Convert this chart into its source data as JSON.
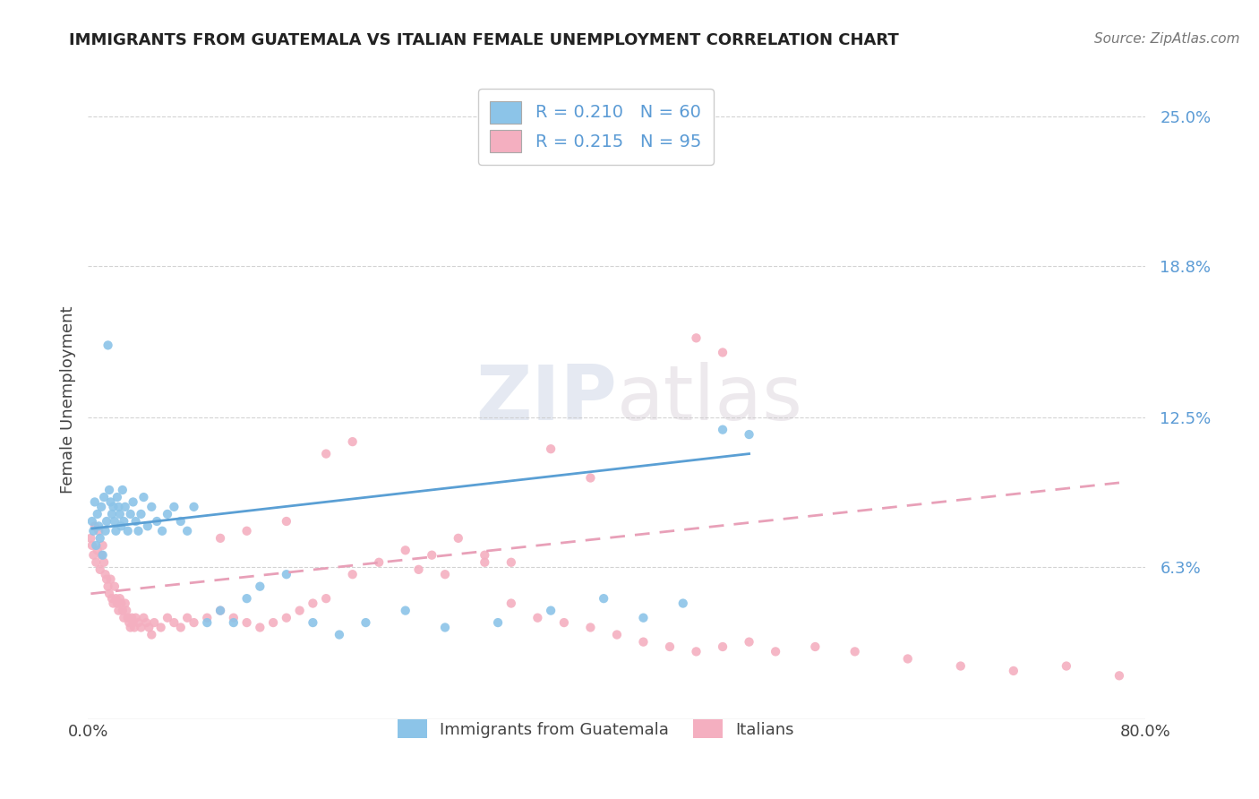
{
  "title": "IMMIGRANTS FROM GUATEMALA VS ITALIAN FEMALE UNEMPLOYMENT CORRELATION CHART",
  "source": "Source: ZipAtlas.com",
  "ylabel": "Female Unemployment",
  "xlim": [
    0.0,
    0.8
  ],
  "ylim": [
    0.0,
    0.265
  ],
  "yticks": [
    0.063,
    0.125,
    0.188,
    0.25
  ],
  "ytick_labels": [
    "6.3%",
    "12.5%",
    "18.8%",
    "25.0%"
  ],
  "r1": 0.21,
  "n1": 60,
  "r2": 0.215,
  "n2": 95,
  "color_blue": "#8cc4e8",
  "color_pink": "#f4afc0",
  "color_blue_line": "#5a9fd4",
  "color_pink_line": "#e8a0b8",
  "legend_label1": "Immigrants from Guatemala",
  "legend_label2": "Italians",
  "watermark_zip": "ZIP",
  "watermark_atlas": "atlas",
  "blue_scatter_x": [
    0.003,
    0.004,
    0.005,
    0.006,
    0.007,
    0.008,
    0.009,
    0.01,
    0.011,
    0.012,
    0.013,
    0.014,
    0.015,
    0.016,
    0.017,
    0.018,
    0.019,
    0.02,
    0.021,
    0.022,
    0.023,
    0.024,
    0.025,
    0.026,
    0.027,
    0.028,
    0.03,
    0.032,
    0.034,
    0.036,
    0.038,
    0.04,
    0.042,
    0.045,
    0.048,
    0.052,
    0.056,
    0.06,
    0.065,
    0.07,
    0.075,
    0.08,
    0.09,
    0.1,
    0.11,
    0.12,
    0.13,
    0.15,
    0.17,
    0.19,
    0.21,
    0.24,
    0.27,
    0.31,
    0.35,
    0.39,
    0.42,
    0.45,
    0.48,
    0.5
  ],
  "blue_scatter_y": [
    0.082,
    0.078,
    0.09,
    0.072,
    0.085,
    0.08,
    0.075,
    0.088,
    0.068,
    0.092,
    0.078,
    0.082,
    0.155,
    0.095,
    0.09,
    0.085,
    0.088,
    0.082,
    0.078,
    0.092,
    0.088,
    0.085,
    0.08,
    0.095,
    0.082,
    0.088,
    0.078,
    0.085,
    0.09,
    0.082,
    0.078,
    0.085,
    0.092,
    0.08,
    0.088,
    0.082,
    0.078,
    0.085,
    0.088,
    0.082,
    0.078,
    0.088,
    0.04,
    0.045,
    0.04,
    0.05,
    0.055,
    0.06,
    0.04,
    0.035,
    0.04,
    0.045,
    0.038,
    0.04,
    0.045,
    0.05,
    0.042,
    0.048,
    0.12,
    0.118
  ],
  "pink_scatter_x": [
    0.002,
    0.003,
    0.004,
    0.005,
    0.006,
    0.007,
    0.008,
    0.009,
    0.01,
    0.011,
    0.012,
    0.013,
    0.014,
    0.015,
    0.016,
    0.017,
    0.018,
    0.019,
    0.02,
    0.021,
    0.022,
    0.023,
    0.024,
    0.025,
    0.026,
    0.027,
    0.028,
    0.029,
    0.03,
    0.031,
    0.032,
    0.033,
    0.034,
    0.035,
    0.036,
    0.038,
    0.04,
    0.042,
    0.044,
    0.046,
    0.048,
    0.05,
    0.055,
    0.06,
    0.065,
    0.07,
    0.075,
    0.08,
    0.09,
    0.1,
    0.11,
    0.12,
    0.13,
    0.14,
    0.15,
    0.16,
    0.17,
    0.18,
    0.2,
    0.22,
    0.24,
    0.26,
    0.28,
    0.3,
    0.32,
    0.34,
    0.36,
    0.38,
    0.4,
    0.42,
    0.44,
    0.46,
    0.48,
    0.5,
    0.52,
    0.55,
    0.58,
    0.62,
    0.66,
    0.7,
    0.74,
    0.78,
    0.46,
    0.48,
    0.35,
    0.38,
    0.3,
    0.32,
    0.25,
    0.27,
    0.2,
    0.18,
    0.15,
    0.12,
    0.1
  ],
  "pink_scatter_y": [
    0.075,
    0.072,
    0.068,
    0.08,
    0.065,
    0.07,
    0.078,
    0.062,
    0.068,
    0.072,
    0.065,
    0.06,
    0.058,
    0.055,
    0.052,
    0.058,
    0.05,
    0.048,
    0.055,
    0.05,
    0.048,
    0.045,
    0.05,
    0.048,
    0.045,
    0.042,
    0.048,
    0.045,
    0.042,
    0.04,
    0.038,
    0.042,
    0.04,
    0.038,
    0.042,
    0.04,
    0.038,
    0.042,
    0.04,
    0.038,
    0.035,
    0.04,
    0.038,
    0.042,
    0.04,
    0.038,
    0.042,
    0.04,
    0.042,
    0.045,
    0.042,
    0.04,
    0.038,
    0.04,
    0.042,
    0.045,
    0.048,
    0.05,
    0.06,
    0.065,
    0.07,
    0.068,
    0.075,
    0.065,
    0.048,
    0.042,
    0.04,
    0.038,
    0.035,
    0.032,
    0.03,
    0.028,
    0.03,
    0.032,
    0.028,
    0.03,
    0.028,
    0.025,
    0.022,
    0.02,
    0.022,
    0.018,
    0.158,
    0.152,
    0.112,
    0.1,
    0.068,
    0.065,
    0.062,
    0.06,
    0.115,
    0.11,
    0.082,
    0.078,
    0.075
  ],
  "blue_trend_x": [
    0.003,
    0.5
  ],
  "blue_trend_y": [
    0.079,
    0.11
  ],
  "pink_trend_x": [
    0.002,
    0.78
  ],
  "pink_trend_y": [
    0.052,
    0.098
  ]
}
